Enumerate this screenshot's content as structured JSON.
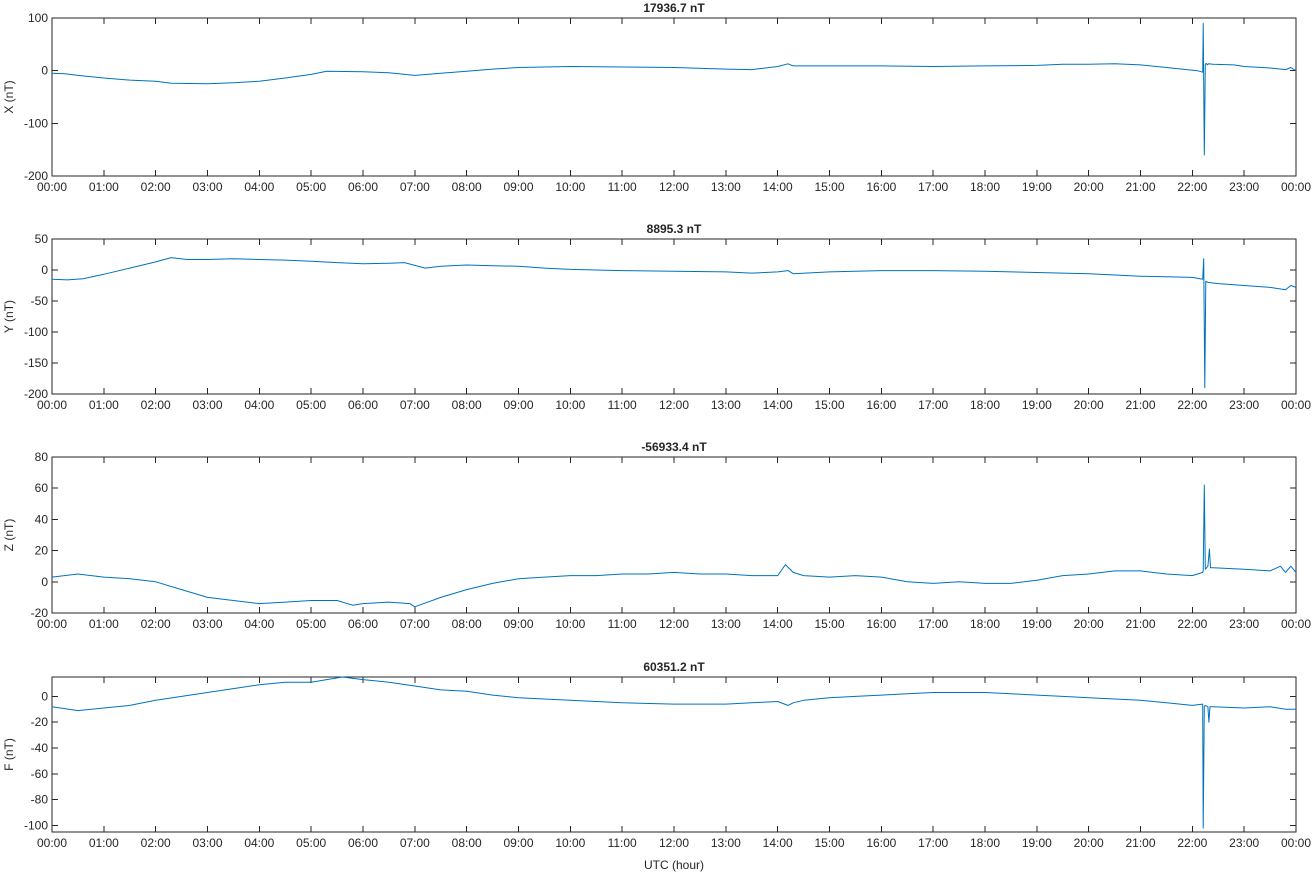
{
  "colors": {
    "line": "#0072bd",
    "axes": "#262626",
    "background": "#ffffff"
  },
  "chart_data": [
    {
      "type": "line",
      "title": "17936.7 nT",
      "xlabel": "",
      "ylabel": "X (nT)",
      "ylim": [
        -200,
        100
      ],
      "yticks": [
        -200,
        -100,
        0,
        100
      ],
      "xlim": [
        0,
        24
      ],
      "xtick_labels": [
        "00:00",
        "01:00",
        "02:00",
        "03:00",
        "04:00",
        "05:00",
        "06:00",
        "07:00",
        "08:00",
        "09:00",
        "10:00",
        "11:00",
        "12:00",
        "13:00",
        "14:00",
        "15:00",
        "16:00",
        "17:00",
        "18:00",
        "19:00",
        "20:00",
        "21:00",
        "22:00",
        "23:00",
        "00:00"
      ],
      "series": [
        {
          "x": [
            0,
            0.25,
            0.5,
            1,
            1.5,
            2,
            2.3,
            3,
            3.5,
            4,
            4.5,
            5,
            5.3,
            6,
            6.5,
            7,
            7.5,
            8,
            8.5,
            9,
            9.5,
            10,
            11,
            12,
            13,
            13.5,
            14,
            14.2,
            14.3,
            15,
            16,
            17,
            18,
            19,
            19.5,
            20,
            20.5,
            21,
            21.5,
            22.1,
            22.2,
            22.21,
            22.23,
            22.25,
            22.27,
            22.29,
            22.31,
            22.4,
            22.8,
            23,
            23.5,
            23.8,
            23.9,
            24
          ],
          "y": [
            -5,
            -6,
            -9,
            -14,
            -18,
            -20,
            -24,
            -25,
            -23,
            -20,
            -14,
            -7,
            -1,
            -2,
            -4,
            -9,
            -5,
            -1,
            3,
            6,
            7,
            8,
            7,
            6,
            3,
            2,
            8,
            13,
            9,
            9,
            9,
            8,
            9,
            10,
            12,
            12,
            13,
            11,
            6,
            0,
            -3,
            90,
            -160,
            12,
            14,
            11,
            13,
            12,
            11,
            8,
            5,
            2,
            6,
            0
          ]
        }
      ]
    },
    {
      "type": "line",
      "title": "8895.3 nT",
      "xlabel": "",
      "ylabel": "Y (nT)",
      "ylim": [
        -200,
        50
      ],
      "yticks": [
        -200,
        -150,
        -100,
        -50,
        0,
        50
      ],
      "xlim": [
        0,
        24
      ],
      "xtick_labels": [
        "00:00",
        "01:00",
        "02:00",
        "03:00",
        "04:00",
        "05:00",
        "06:00",
        "07:00",
        "08:00",
        "09:00",
        "10:00",
        "11:00",
        "12:00",
        "13:00",
        "14:00",
        "15:00",
        "16:00",
        "17:00",
        "18:00",
        "19:00",
        "20:00",
        "21:00",
        "22:00",
        "23:00",
        "00:00"
      ],
      "series": [
        {
          "x": [
            0,
            0.3,
            0.6,
            1,
            1.5,
            2,
            2.3,
            2.6,
            3,
            3.5,
            4,
            4.5,
            5,
            5.5,
            6,
            6.5,
            6.8,
            7.2,
            7.5,
            8,
            8.5,
            9,
            9.5,
            10,
            11,
            12,
            13,
            13.5,
            14,
            14.2,
            14.3,
            15,
            16,
            17,
            18,
            19,
            20,
            21,
            22,
            22.2,
            22.22,
            22.24,
            22.26,
            22.3,
            22.5,
            23,
            23.5,
            23.8,
            23.9,
            24
          ],
          "y": [
            -15,
            -16,
            -14,
            -7,
            3,
            13,
            20,
            17,
            17,
            18,
            17,
            16,
            14,
            12,
            10,
            11,
            12,
            3,
            6,
            8,
            7,
            6,
            3,
            1,
            -1,
            -2,
            -3,
            -5,
            -3,
            -1,
            -6,
            -3,
            -1,
            -1,
            -2,
            -4,
            -6,
            -10,
            -12,
            -15,
            18,
            -190,
            -18,
            -20,
            -22,
            -25,
            -28,
            -32,
            -25,
            -28
          ]
        }
      ]
    },
    {
      "type": "line",
      "title": "-56933.4 nT",
      "xlabel": "",
      "ylabel": "Z (nT)",
      "ylim": [
        -20,
        80
      ],
      "yticks": [
        -20,
        0,
        20,
        40,
        60,
        80
      ],
      "xlim": [
        0,
        24
      ],
      "xtick_labels": [
        "00:00",
        "01:00",
        "02:00",
        "03:00",
        "04:00",
        "05:00",
        "06:00",
        "07:00",
        "08:00",
        "09:00",
        "10:00",
        "11:00",
        "12:00",
        "13:00",
        "14:00",
        "15:00",
        "16:00",
        "17:00",
        "18:00",
        "19:00",
        "20:00",
        "21:00",
        "22:00",
        "23:00",
        "00:00"
      ],
      "series": [
        {
          "x": [
            0,
            0.5,
            1,
            1.5,
            2,
            2.5,
            3,
            3.5,
            4,
            4.5,
            5,
            5.5,
            5.8,
            6,
            6.5,
            6.9,
            7,
            7.5,
            8,
            8.5,
            9,
            9.5,
            10,
            10.5,
            11,
            11.5,
            12,
            12.5,
            13,
            13.5,
            14,
            14.15,
            14.3,
            14.5,
            15,
            15.5,
            16,
            16.5,
            17,
            17.5,
            18,
            18.5,
            19,
            19.5,
            20,
            20.5,
            21,
            21.5,
            22,
            22.2,
            22.21,
            22.23,
            22.25,
            22.3,
            22.33,
            22.35,
            22.4,
            23,
            23.5,
            23.7,
            23.8,
            23.9,
            24
          ],
          "y": [
            3,
            5,
            3,
            2,
            0,
            -5,
            -10,
            -12,
            -14,
            -13,
            -12,
            -12,
            -15,
            -14,
            -13,
            -14,
            -16,
            -10,
            -5,
            -1,
            2,
            3,
            4,
            4,
            5,
            5,
            6,
            5,
            5,
            4,
            4,
            11,
            6,
            4,
            3,
            4,
            3,
            0,
            -1,
            0,
            -1,
            -1,
            1,
            4,
            5,
            7,
            7,
            5,
            4,
            6,
            7,
            62,
            8,
            10,
            21,
            9,
            9,
            8,
            7,
            10,
            6,
            10,
            6
          ]
        }
      ]
    },
    {
      "type": "line",
      "title": "60351.2 nT",
      "xlabel": "UTC (hour)",
      "ylabel": "F (nT)",
      "ylim": [
        -105,
        15
      ],
      "yticks": [
        -100,
        -80,
        -60,
        -40,
        -20,
        0
      ],
      "xlim": [
        0,
        24
      ],
      "xtick_labels": [
        "00:00",
        "01:00",
        "02:00",
        "03:00",
        "04:00",
        "05:00",
        "06:00",
        "07:00",
        "08:00",
        "09:00",
        "10:00",
        "11:00",
        "12:00",
        "13:00",
        "14:00",
        "15:00",
        "16:00",
        "17:00",
        "18:00",
        "19:00",
        "20:00",
        "21:00",
        "22:00",
        "23:00",
        "00:00"
      ],
      "series": [
        {
          "x": [
            0,
            0.5,
            1,
            1.5,
            2,
            2.5,
            3,
            3.5,
            4,
            4.5,
            5,
            5.3,
            5.6,
            6,
            6.5,
            7,
            7.5,
            8,
            8.5,
            9,
            9.5,
            10,
            11,
            12,
            13,
            13.5,
            14,
            14.2,
            14.3,
            14.5,
            15,
            15.5,
            16,
            16.5,
            17,
            17.5,
            18,
            18.5,
            19,
            19.5,
            20,
            20.5,
            21,
            21.5,
            22,
            22.2,
            22.21,
            22.23,
            22.25,
            22.3,
            22.32,
            22.34,
            22.4,
            23,
            23.5,
            23.8,
            24
          ],
          "y": [
            -8,
            -11,
            -9,
            -7,
            -3,
            0,
            3,
            6,
            9,
            11,
            11,
            13,
            15,
            13,
            11,
            8,
            5,
            4,
            1,
            -1,
            -2,
            -3,
            -5,
            -6,
            -6,
            -5,
            -4,
            -7,
            -5,
            -3,
            -1,
            0,
            1,
            2,
            3,
            3,
            3,
            2,
            1,
            0,
            -1,
            -2,
            -3,
            -5,
            -7,
            -6,
            -102,
            -8,
            -7,
            -8,
            -20,
            -8,
            -8,
            -9,
            -8,
            -10,
            -10
          ]
        }
      ]
    }
  ]
}
